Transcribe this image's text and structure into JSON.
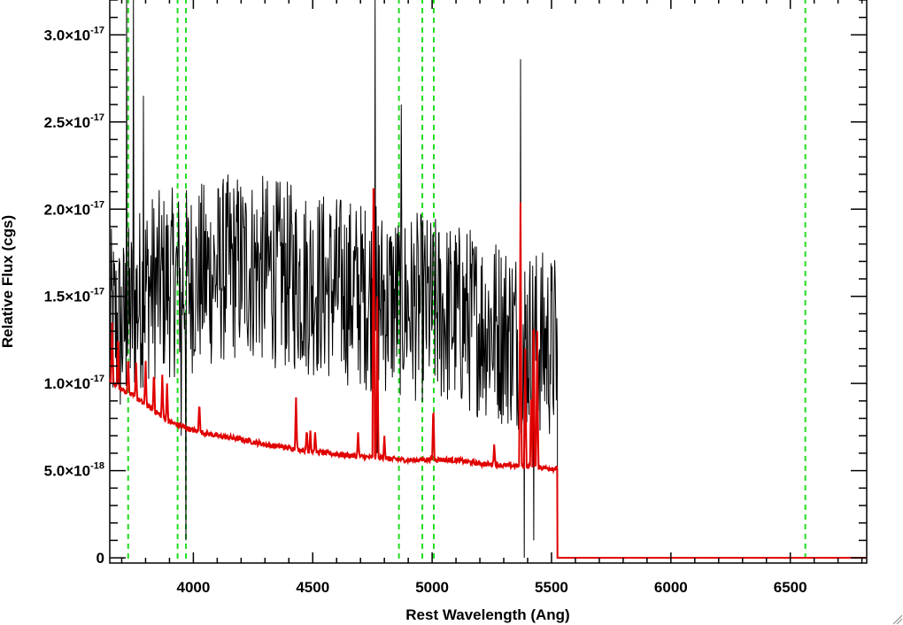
{
  "chart_data": {
    "type": "line",
    "xlabel": "Rest Wavelength (Ang)",
    "ylabel": "Relative Flux (cgs)",
    "xlim": [
      3650,
      6820
    ],
    "ylim": [
      -3e-19,
      3.21e-17
    ],
    "x_ticks": [
      {
        "value": 4000,
        "label": "4000"
      },
      {
        "value": 4500,
        "label": "4500"
      },
      {
        "value": 5000,
        "label": "5000"
      },
      {
        "value": 5500,
        "label": "5500"
      },
      {
        "value": 6000,
        "label": "6000"
      },
      {
        "value": 6500,
        "label": "6500"
      }
    ],
    "x_minor_step": 100,
    "y_ticks": [
      {
        "value": 0,
        "mantissa": "0",
        "exponent": ""
      },
      {
        "value": 5e-18,
        "mantissa": "5.0×10",
        "exponent": "-18"
      },
      {
        "value": 1e-17,
        "mantissa": "1.0×10",
        "exponent": "-17"
      },
      {
        "value": 1.5e-17,
        "mantissa": "1.5×10",
        "exponent": "-17"
      },
      {
        "value": 2e-17,
        "mantissa": "2.0×10",
        "exponent": "-17"
      },
      {
        "value": 2.5e-17,
        "mantissa": "2.5×10",
        "exponent": "-17"
      },
      {
        "value": 3e-17,
        "mantissa": "3.0×10",
        "exponent": "-17"
      }
    ],
    "y_minor_step": 1e-18,
    "grid": false,
    "legend": "none",
    "series": [
      {
        "role": "observed spectrum",
        "color": "#000000",
        "x_start": 3650,
        "x_end": 5525,
        "mean_envelope": [
          [
            3650,
            1.35e-17
          ],
          [
            3700,
            1.3e-17
          ],
          [
            3800,
            1.55e-17
          ],
          [
            4000,
            1.6e-17
          ],
          [
            4200,
            1.68e-17
          ],
          [
            4500,
            1.58e-17
          ],
          [
            4800,
            1.48e-17
          ],
          [
            5000,
            1.42e-17
          ],
          [
            5200,
            1.35e-17
          ],
          [
            5400,
            1.25e-17
          ],
          [
            5525,
            1.2e-17
          ]
        ],
        "noise_amplitude": 5.5e-18,
        "spikes": [
          [
            3720,
            3.21e-17
          ],
          [
            3750,
            3.21e-17
          ],
          [
            3790,
            2.65e-17
          ],
          [
            3950,
            7e-18
          ],
          [
            3970,
            1e-18
          ],
          [
            4760,
            3.21e-17
          ],
          [
            4770,
            6e-18
          ],
          [
            4870,
            2.6e-17
          ],
          [
            5370,
            2.86e-17
          ],
          [
            5385,
            0.0
          ],
          [
            5425,
            1e-18
          ]
        ]
      },
      {
        "role": "model continuum",
        "color": "#e00000",
        "x_start": 3650,
        "x_end": 5525,
        "continuum": [
          [
            3650,
            1.02e-17
          ],
          [
            3700,
            9.7e-18
          ],
          [
            3800,
            8.8e-18
          ],
          [
            3900,
            7.8e-18
          ],
          [
            4000,
            7.3e-18
          ],
          [
            4100,
            7e-18
          ],
          [
            4200,
            6.8e-18
          ],
          [
            4300,
            6.5e-18
          ],
          [
            4500,
            6.1e-18
          ],
          [
            4700,
            5.8e-18
          ],
          [
            4900,
            5.6e-18
          ],
          [
            5000,
            5.65e-18
          ],
          [
            5100,
            5.6e-18
          ],
          [
            5200,
            5.4e-18
          ],
          [
            5300,
            5.3e-18
          ],
          [
            5400,
            5.25e-18
          ],
          [
            5525,
            5.1e-18
          ]
        ],
        "emission_lines": [
          [
            3660,
            1.35e-17
          ],
          [
            3685,
            1.3e-17
          ],
          [
            3727,
            1.17e-17
          ],
          [
            3760,
            1.12e-17
          ],
          [
            3800,
            1.13e-17
          ],
          [
            3835,
            1.08e-17
          ],
          [
            3870,
            1.05e-17
          ],
          [
            3890,
            1e-17
          ],
          [
            4025,
            9e-18
          ],
          [
            4430,
            9.2e-18
          ],
          [
            4475,
            7.4e-18
          ],
          [
            4490,
            7.3e-18
          ],
          [
            4510,
            7.2e-18
          ],
          [
            4690,
            7.2e-18
          ],
          [
            4755,
            2.5e-17
          ],
          [
            4770,
            1.5e-17
          ],
          [
            4800,
            7e-18
          ],
          [
            5005,
            8.9e-18
          ],
          [
            5260,
            6.5e-18
          ],
          [
            5370,
            2.04e-17
          ],
          [
            5390,
            1.2e-17
          ],
          [
            5415,
            1e-17
          ],
          [
            5425,
            1.5e-17
          ],
          [
            5440,
            1.3e-17
          ]
        ],
        "tail_value": 0.0
      }
    ],
    "reference_lines": {
      "color": "#22dd22",
      "style": "dashed",
      "x": [
        3727,
        3934,
        3969,
        4861,
        4959,
        5007,
        6563
      ]
    }
  }
}
